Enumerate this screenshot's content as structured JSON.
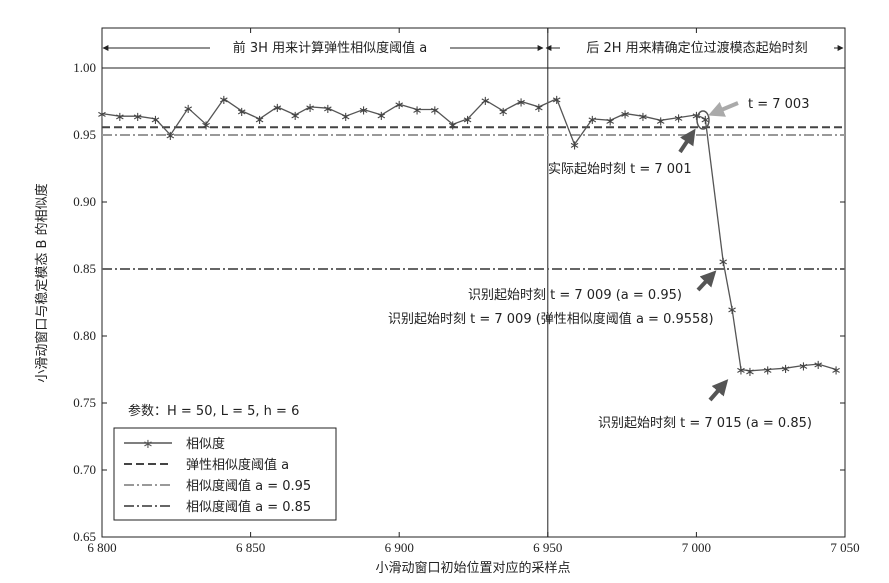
{
  "chart_data": {
    "type": "line",
    "xlabel": "小滑动窗口初始位置对应的采样点",
    "ylabel": "小滑动窗口与稳定模态 B 的相似度",
    "xlim": [
      6800,
      7050
    ],
    "ylim": [
      0.65,
      1.0
    ],
    "xticks": [
      6800,
      6850,
      6900,
      6950,
      7000,
      7050
    ],
    "xtick_labels": [
      "6 800",
      "6 850",
      "6 900",
      "6 950",
      "7 000",
      "7 050"
    ],
    "yticks": [
      0.65,
      0.7,
      0.75,
      0.8,
      0.85,
      0.9,
      0.95,
      1.0
    ],
    "ytick_labels": [
      "0.65",
      "0.70",
      "0.75",
      "0.80",
      "0.85",
      "0.90",
      "0.95",
      "1.00"
    ],
    "grid": false,
    "legend_position": "bottom-left",
    "series": [
      {
        "name": "相似度",
        "color": "#555555",
        "x": [
          6800,
          6806,
          6812,
          6818,
          6823,
          6829,
          6835,
          6841,
          6847,
          6853,
          6859,
          6865,
          6870,
          6876,
          6882,
          6888,
          6894,
          6900,
          6906,
          6912,
          6918,
          6923,
          6929,
          6935,
          6941,
          6947,
          6953,
          6959,
          6965,
          6971,
          6976,
          6982,
          6988,
          6994,
          7000,
          7003,
          7009,
          7012,
          7015,
          7018,
          7024,
          7030,
          7036,
          7041,
          7047
        ],
        "y": [
          0.966,
          0.964,
          0.964,
          0.962,
          0.95,
          0.97,
          0.958,
          0.977,
          0.968,
          0.962,
          0.971,
          0.965,
          0.971,
          0.97,
          0.964,
          0.969,
          0.965,
          0.973,
          0.969,
          0.969,
          0.958,
          0.962,
          0.976,
          0.968,
          0.975,
          0.971,
          0.977,
          0.943,
          0.962,
          0.961,
          0.966,
          0.964,
          0.961,
          0.963,
          0.965,
          0.962,
          0.856,
          0.82,
          0.775,
          0.774,
          0.775,
          0.776,
          0.778,
          0.779,
          0.775
        ]
      },
      {
        "name": "弹性相似度阈值 a",
        "color": "#444444",
        "dash": "dashed",
        "y": 0.9558
      },
      {
        "name": "相似度阈值 a = 0.95",
        "color": "#999999",
        "dash": "dashdot",
        "y": 0.95
      },
      {
        "name": "相似度阈值 a = 0.85",
        "color": "#666666",
        "dash": "dashdot",
        "y": 0.85
      }
    ],
    "divider_x": 6950,
    "top_labels": {
      "left": "前 3H 用来计算弹性相似度阈值 a",
      "right": "后 2H 用来精确定位过渡模态起始时刻"
    },
    "params_label": "参数：H = 50, L = 5, h = 6",
    "annotations": [
      {
        "id": "t7003",
        "text": "t = 7 003",
        "at": [
          7003,
          0.966
        ]
      },
      {
        "id": "t7001",
        "text": "实际起始时刻 t = 7 001",
        "at": [
          7001,
          0.963
        ]
      },
      {
        "id": "t7009a",
        "text": "识别起始时刻 t = 7 009 (a = 0.95)",
        "at": [
          7009,
          0.856
        ]
      },
      {
        "id": "t7009b",
        "text": "识别起始时刻 t = 7 009 (弹性相似度阈值 a = 0.9558)",
        "at": [
          7009,
          0.856
        ]
      },
      {
        "id": "t7015",
        "text": "识别起始时刻 t = 7 015 (a = 0.85)",
        "at": [
          7015,
          0.775
        ]
      }
    ]
  }
}
